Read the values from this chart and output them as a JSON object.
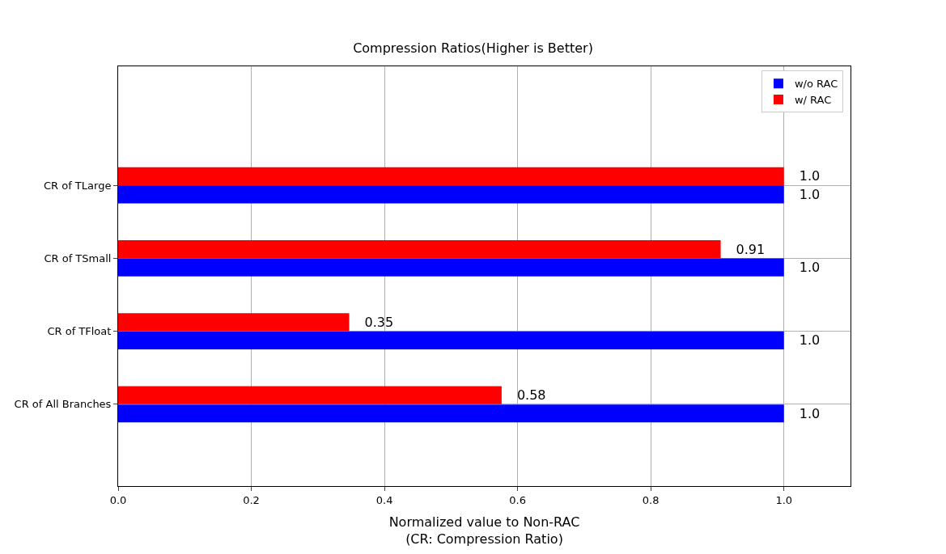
{
  "chart_data": {
    "type": "bar",
    "orientation": "horizontal",
    "title": "Compression Ratios(Higher is Better)",
    "xlabel": "Normalized value to Non-RAC\n(CR: Compression Ratio)",
    "categories": [
      "CR of TLarge",
      "CR of TSmall",
      "CR of TFloat",
      "CR of All Branches"
    ],
    "series": [
      {
        "name": "w/o RAC",
        "color": "#0000ff",
        "values": [
          1.0,
          1.0,
          1.0,
          1.0
        ],
        "value_labels": [
          "1.0",
          "1.0",
          "1.0",
          "1.0"
        ]
      },
      {
        "name": "w/ RAC",
        "color": "#ff0000",
        "values": [
          1.0,
          0.905,
          0.347,
          0.576
        ],
        "value_labels": [
          "1.0",
          "0.91",
          "0.35",
          "0.58"
        ]
      }
    ],
    "xlim": [
      0,
      1.1
    ],
    "xticks": [
      {
        "value": 0,
        "label": "0.0"
      },
      {
        "value": 0.2,
        "label": "0.2"
      },
      {
        "value": 0.4,
        "label": "0.4"
      },
      {
        "value": 0.6,
        "label": "0.6"
      },
      {
        "value": 0.8,
        "label": "0.8"
      },
      {
        "value": 1.0,
        "label": "1.0"
      }
    ],
    "grid": true,
    "legend": "top right"
  }
}
